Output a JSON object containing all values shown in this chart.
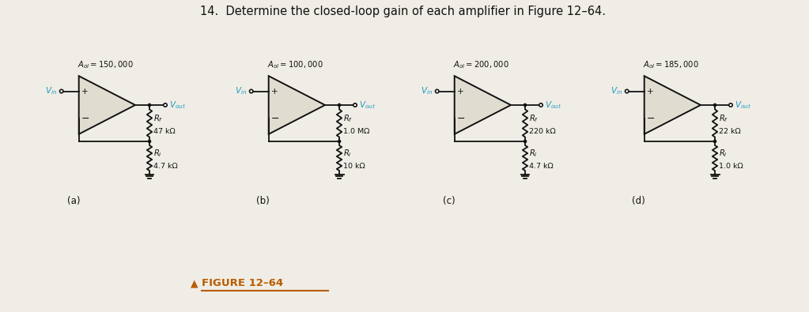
{
  "title": "14.  Determine the closed-loop gain of each amplifier in Figure 12–64.",
  "figure_caption": "FIGURE 12–64",
  "bg_color": "#f0ede6",
  "circuits": [
    {
      "label": "(a)",
      "aol": "A_{ol} = 150,000",
      "Rf_val": "47 kΩ",
      "Ri_val": "4.7 kΩ"
    },
    {
      "label": "(b)",
      "aol": "A_{ol} = 100,000",
      "Rf_val": "1.0 MΩ",
      "Ri_val": "10 kΩ"
    },
    {
      "label": "(c)",
      "aol": "A_{ol} = 200,000",
      "Rf_val": "220 kΩ",
      "Ri_val": "4.7 kΩ"
    },
    {
      "label": "(d)",
      "aol": "A_{ol} = 185,000",
      "Rf_val": "22 kΩ",
      "Ri_val": "1.0 kΩ"
    }
  ],
  "cyan_color": "#1a9bbf",
  "orange_color": "#b85c00",
  "opamp_fill": "#e0ddd0",
  "line_color": "#111111",
  "lw": 1.3
}
